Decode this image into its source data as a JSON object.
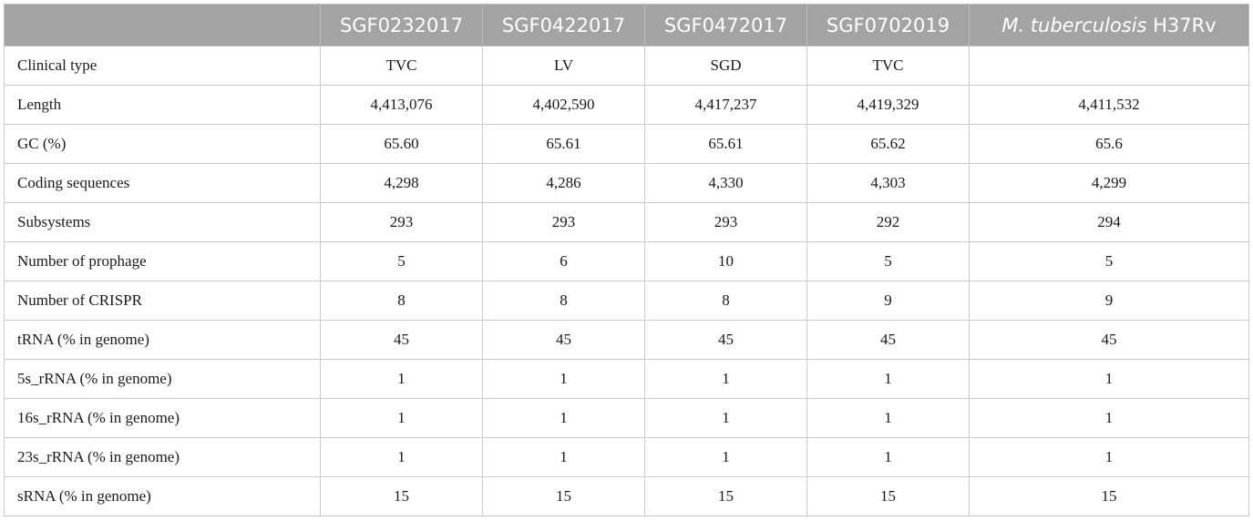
{
  "table": {
    "columns": [
      "",
      "SGF0232017",
      "SGF0422017",
      "SGF0472017",
      "SGF0702019"
    ],
    "last_column": {
      "italic": "M. tuberculosis",
      "rest": " H37Rv"
    },
    "rows": [
      {
        "label": "Clinical type",
        "values": [
          "TVC",
          "LV",
          "SGD",
          "TVC",
          ""
        ]
      },
      {
        "label": "Length",
        "values": [
          "4,413,076",
          "4,402,590",
          "4,417,237",
          "4,419,329",
          "4,411,532"
        ]
      },
      {
        "label": "GC (%)",
        "values": [
          "65.60",
          "65.61",
          "65.61",
          "65.62",
          "65.6"
        ]
      },
      {
        "label": "Coding sequences",
        "values": [
          "4,298",
          "4,286",
          "4,330",
          "4,303",
          "4,299"
        ]
      },
      {
        "label": "Subsystems",
        "values": [
          "293",
          "293",
          "293",
          "292",
          "294"
        ]
      },
      {
        "label": "Number of prophage",
        "values": [
          "5",
          "6",
          "10",
          "5",
          "5"
        ]
      },
      {
        "label": "Number of CRISPR",
        "values": [
          "8",
          "8",
          "8",
          "9",
          "9"
        ]
      },
      {
        "label": "tRNA (% in genome)",
        "values": [
          "45",
          "45",
          "45",
          "45",
          "45"
        ]
      },
      {
        "label": "5s_rRNA (% in genome)",
        "values": [
          "1",
          "1",
          "1",
          "1",
          "1"
        ]
      },
      {
        "label": "16s_rRNA (% in genome)",
        "values": [
          "1",
          "1",
          "1",
          "1",
          "1"
        ]
      },
      {
        "label": "23s_rRNA (% in genome)",
        "values": [
          "1",
          "1",
          "1",
          "1",
          "1"
        ]
      },
      {
        "label": "sRNA (% in genome)",
        "values": [
          "15",
          "15",
          "15",
          "15",
          "15"
        ]
      }
    ]
  }
}
